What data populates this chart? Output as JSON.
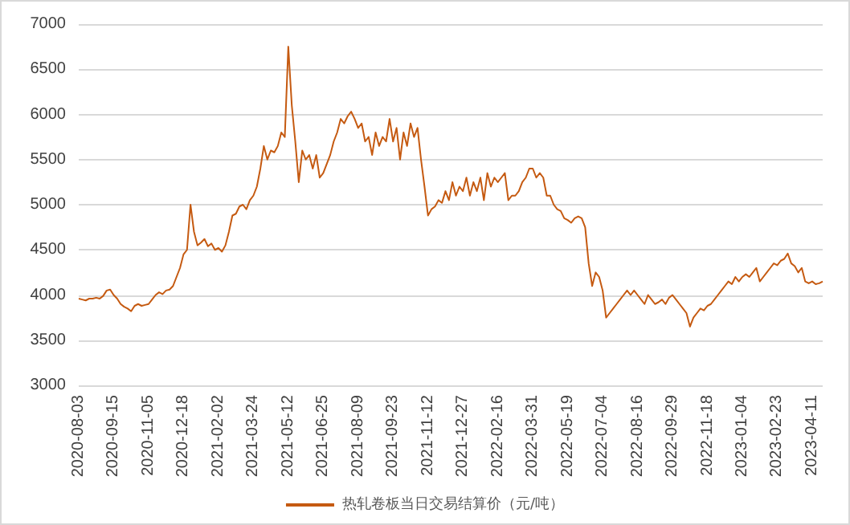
{
  "chart_data": {
    "type": "line",
    "legend": "bottom",
    "grid": "y",
    "marker": "none",
    "line_style": "solid",
    "categories": [
      "2020-08-03",
      null,
      null,
      null,
      null,
      null,
      null,
      null,
      null,
      null,
      "2020-09-15",
      null,
      null,
      null,
      null,
      null,
      null,
      null,
      null,
      null,
      "2020-11-05",
      null,
      null,
      null,
      null,
      null,
      null,
      null,
      null,
      null,
      "2020-12-18",
      null,
      null,
      null,
      null,
      null,
      null,
      null,
      null,
      null,
      "2021-02-02",
      null,
      null,
      null,
      null,
      null,
      null,
      null,
      null,
      null,
      "2021-03-24",
      null,
      null,
      null,
      null,
      null,
      null,
      null,
      null,
      null,
      "2021-05-12",
      null,
      null,
      null,
      null,
      null,
      null,
      null,
      null,
      null,
      "2021-06-25",
      null,
      null,
      null,
      null,
      null,
      null,
      null,
      null,
      null,
      "2021-08-09",
      null,
      null,
      null,
      null,
      null,
      null,
      null,
      null,
      null,
      "2021-09-23",
      null,
      null,
      null,
      null,
      null,
      null,
      null,
      null,
      null,
      "2021-11-12",
      null,
      null,
      null,
      null,
      null,
      null,
      null,
      null,
      null,
      "2021-12-27",
      null,
      null,
      null,
      null,
      null,
      null,
      null,
      null,
      null,
      "2022-02-16",
      null,
      null,
      null,
      null,
      null,
      null,
      null,
      null,
      null,
      "2022-03-31",
      null,
      null,
      null,
      null,
      null,
      null,
      null,
      null,
      null,
      "2022-05-19",
      null,
      null,
      null,
      null,
      null,
      null,
      null,
      null,
      null,
      "2022-07-04",
      null,
      null,
      null,
      null,
      null,
      null,
      null,
      null,
      null,
      "2022-08-16",
      null,
      null,
      null,
      null,
      null,
      null,
      null,
      null,
      null,
      "2022-09-29",
      null,
      null,
      null,
      null,
      null,
      null,
      null,
      null,
      null,
      "2022-11-18",
      null,
      null,
      null,
      null,
      null,
      null,
      null,
      null,
      null,
      "2023-01-04",
      null,
      null,
      null,
      null,
      null,
      null,
      null,
      null,
      null,
      "2023-02-23",
      null,
      null,
      null,
      null,
      null,
      null,
      null,
      null,
      null,
      "2023-04-11",
      null,
      null,
      null
    ],
    "series": [
      {
        "name": "热轧卷板当日交易结算价（元/吨）",
        "color": "#c55a11",
        "values": [
          3960,
          3950,
          3940,
          3960,
          3960,
          3970,
          3960,
          3990,
          4050,
          4060,
          4000,
          3960,
          3900,
          3870,
          3850,
          3820,
          3880,
          3900,
          3880,
          3890,
          3900,
          3950,
          4000,
          4030,
          4010,
          4050,
          4060,
          4100,
          4200,
          4300,
          4450,
          4500,
          5000,
          4700,
          4550,
          4580,
          4620,
          4540,
          4570,
          4500,
          4520,
          4480,
          4550,
          4700,
          4880,
          4900,
          4980,
          5000,
          4950,
          5050,
          5100,
          5200,
          5400,
          5650,
          5500,
          5600,
          5580,
          5650,
          5800,
          5750,
          6750,
          6100,
          5700,
          5250,
          5600,
          5500,
          5550,
          5400,
          5550,
          5300,
          5350,
          5450,
          5550,
          5700,
          5800,
          5950,
          5900,
          5980,
          6030,
          5950,
          5850,
          5900,
          5700,
          5750,
          5550,
          5800,
          5650,
          5750,
          5700,
          5950,
          5700,
          5850,
          5500,
          5800,
          5650,
          5900,
          5750,
          5850,
          5500,
          5200,
          4880,
          4950,
          4980,
          5050,
          5020,
          5150,
          5050,
          5250,
          5100,
          5200,
          5150,
          5300,
          5100,
          5250,
          5150,
          5300,
          5050,
          5350,
          5200,
          5300,
          5250,
          5300,
          5350,
          5050,
          5100,
          5100,
          5150,
          5250,
          5300,
          5400,
          5400,
          5300,
          5350,
          5300,
          5100,
          5100,
          5000,
          4950,
          4930,
          4850,
          4830,
          4800,
          4850,
          4870,
          4850,
          4750,
          4350,
          4100,
          4250,
          4200,
          4050,
          3750,
          3800,
          3850,
          3900,
          3950,
          4000,
          4050,
          4000,
          4050,
          4000,
          3950,
          3900,
          4000,
          3950,
          3900,
          3920,
          3950,
          3900,
          3970,
          4000,
          3950,
          3900,
          3850,
          3800,
          3650,
          3750,
          3800,
          3850,
          3830,
          3880,
          3900,
          3950,
          4000,
          4050,
          4100,
          4150,
          4120,
          4200,
          4150,
          4200,
          4230,
          4200,
          4250,
          4300,
          4150,
          4200,
          4250,
          4300,
          4350,
          4330,
          4380,
          4400,
          4460,
          4350,
          4320,
          4250,
          4300,
          4150,
          4130,
          4150,
          4120,
          4130,
          4150
        ]
      }
    ],
    "ylim": [
      3000,
      7000
    ],
    "yticks": [
      3000,
      3500,
      4000,
      4500,
      5000,
      5500,
      6000,
      6500,
      7000
    ]
  }
}
